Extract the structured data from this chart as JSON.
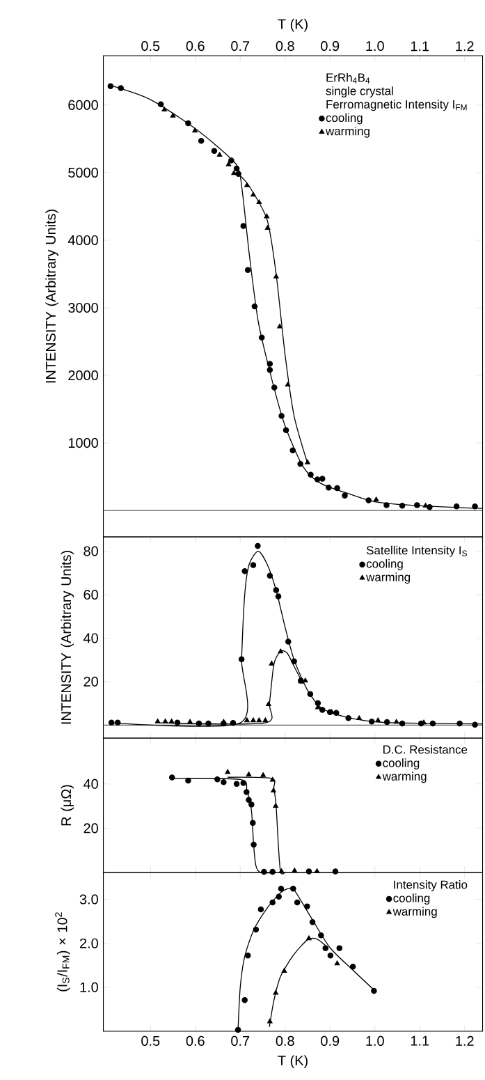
{
  "chart_data": [
    {
      "type": "scatter",
      "xlabel": "T (K)",
      "ylabel": "INTENSITY (Arbitrary Units)",
      "xlim": [
        0.395,
        1.24
      ],
      "xticks": [
        0.5,
        0.6,
        0.7,
        0.8,
        0.9,
        {
          "value": 1,
          "label": "1.0"
        },
        1.1,
        1.2
      ],
      "ylim": [
        -390,
        6730
      ],
      "yticks": [
        1000,
        2000,
        3000,
        4000,
        5000,
        6000
      ],
      "annotations": [
        "ErRh$_{4}$B$_{4}$",
        "single crystal"
      ],
      "legend_title": "Ferromagnetic Intensity I$_{FM}$",
      "legend": "top right",
      "ref_lines": [
        {
          "axis": "y",
          "value": 0
        }
      ],
      "series": [
        {
          "name": "cooling",
          "marker": "circle",
          "color": "#000000",
          "x": [
            0.411,
            0.434,
            0.523,
            0.584,
            0.613,
            0.642,
            0.68,
            0.692,
            0.696,
            0.707,
            0.717,
            0.732,
            0.748,
            0.766,
            0.766,
            0.776,
            0.792,
            0.802,
            0.817,
            0.834,
            0.857,
            0.872,
            0.883,
            0.897,
            0.916,
            0.933,
            0.986,
            1.026,
            1.061,
            1.094,
            1.122,
            1.182,
            1.223
          ],
          "values": [
            6280,
            6250,
            6010,
            5730,
            5470,
            5320,
            5180,
            5060,
            4980,
            4210,
            3560,
            3020,
            2560,
            2170,
            2080,
            1820,
            1400,
            1190,
            890,
            690,
            530,
            460,
            470,
            340,
            330,
            220,
            150,
            80,
            70,
            80,
            50,
            60,
            60
          ]
        },
        {
          "name": "warming",
          "marker": "triangle",
          "color": "#000000",
          "x": [
            0.531,
            0.55,
            0.599,
            0.654,
            0.674,
            0.686,
            0.715,
            0.729,
            0.742,
            0.759,
            0.761,
            0.78,
            0.788,
            0.806,
            0.85,
            1.003,
            1.113
          ],
          "values": [
            5930,
            5840,
            5620,
            5260,
            5120,
            4990,
            4810,
            4670,
            4560,
            4350,
            4180,
            3460,
            2720,
            1860,
            710,
            160,
            70
          ]
        },
        {
          "type": "line",
          "marker": "none",
          "color": "#000000",
          "x": [
            0.411,
            0.5,
            0.6,
            0.68,
            0.7,
            0.72,
            0.74,
            0.77,
            0.8,
            0.84,
            0.88,
            0.95,
            1.0,
            1.1,
            1.24
          ],
          "values": [
            6290,
            6080,
            5650,
            5200,
            4950,
            3800,
            2800,
            1950,
            1250,
            650,
            400,
            230,
            130,
            70,
            30
          ]
        },
        {
          "type": "line",
          "marker": "none",
          "color": "#000000",
          "x": [
            0.7,
            0.72,
            0.76,
            0.78,
            0.8,
            0.82,
            0.85
          ],
          "values": [
            4950,
            4800,
            4300,
            3500,
            2300,
            1400,
            700
          ]
        }
      ]
    },
    {
      "type": "scatter",
      "ylabel": "INTENSITY (Arbitrary Units)",
      "xlim": [
        0.395,
        1.24
      ],
      "xticks": [
        0.5,
        0.6,
        0.7,
        0.8,
        0.9,
        1.0,
        1.1,
        1.2
      ],
      "ylim": [
        -6,
        86.6
      ],
      "yticks": [
        20,
        40,
        60,
        80
      ],
      "tick_labels": "y",
      "legend_title": "Satellite Intensity I$_{S}$",
      "legend": "top right",
      "ref_lines": [
        {
          "axis": "y",
          "value": 0
        }
      ],
      "series": [
        {
          "name": "cooling",
          "marker": "circle",
          "color": "#000000",
          "x": [
            0.413,
            0.427,
            0.56,
            0.608,
            0.629,
            0.663,
            0.684,
            0.703,
            0.71,
            0.729,
            0.739,
            0.766,
            0.78,
            0.785,
            0.807,
            0.82,
            0.835,
            0.856,
            0.873,
            0.883,
            0.9,
            0.914,
            0.941,
            0.993,
            1.027,
            1.061,
            1.103,
            1.129,
            1.189,
            1.223
          ],
          "values": [
            1.1,
            1.1,
            1.1,
            0.7,
            0.7,
            0.7,
            1,
            30.3,
            70.8,
            73.6,
            82.4,
            68.7,
            62.1,
            59.2,
            38.4,
            29.3,
            20.4,
            14.3,
            10.1,
            7,
            5.9,
            5.6,
            3.2,
            1.6,
            1.4,
            0.7,
            0.7,
            0.7,
            0.7,
            0.2
          ]
        },
        {
          "name": "warming",
          "marker": "triangle",
          "color": "#000000",
          "x": [
            0.516,
            0.533,
            0.547,
            0.588,
            0.663,
            0.715,
            0.729,
            0.742,
            0.756,
            0.763,
            0.77,
            0.79,
            0.835,
            0.845,
            0.873,
            0.904,
            0.965,
            1.007,
            1.048,
            1.109
          ],
          "values": [
            1.6,
            1.6,
            1.6,
            1.4,
            1.4,
            2.1,
            2.1,
            2.1,
            2.1,
            9.5,
            28.2,
            33.8,
            20,
            20.4,
            8.1,
            5.9,
            3.1,
            2.1,
            1.4,
            1.1
          ]
        },
        {
          "type": "line",
          "marker": "none",
          "color": "#000000",
          "x": [
            0.413,
            0.7,
            0.703,
            0.71,
            0.72,
            0.74,
            0.76,
            0.78,
            0.8,
            0.82,
            0.85,
            0.88,
            0.92,
            0.98,
            1.05,
            1.24
          ],
          "values": [
            1,
            1,
            30,
            60,
            74,
            80,
            74,
            62,
            45,
            30,
            16,
            8,
            4.5,
            2,
            1,
            0.5
          ]
        },
        {
          "type": "line",
          "marker": "none",
          "color": "#000000",
          "x": [
            0.52,
            0.755,
            0.765,
            0.775,
            0.79,
            0.805,
            0.82,
            0.84
          ],
          "values": [
            1,
            1,
            10,
            28,
            34,
            33,
            27,
            19
          ]
        }
      ]
    },
    {
      "type": "scatter",
      "ylabel": "R (μΩ)",
      "xlim": [
        0.395,
        1.24
      ],
      "xticks": [
        0.5,
        0.6,
        0.7,
        0.8,
        0.9,
        1.0,
        1.1,
        1.2
      ],
      "ylim": [
        0,
        60.7
      ],
      "yticks": [
        20,
        40
      ],
      "tick_labels": "y",
      "legend_title": "D.C. Resistance",
      "legend": "top right",
      "series": [
        {
          "name": "cooling",
          "marker": "circle",
          "color": "#000000",
          "x": [
            0.548,
            0.584,
            0.649,
            0.663,
            0.692,
            0.707,
            0.714,
            0.719,
            0.725,
            0.728,
            0.73,
            0.753,
            0.772,
            0.853,
            0.912
          ],
          "values": [
            42.9,
            41.5,
            42.1,
            40.8,
            40,
            40.4,
            36.3,
            32.8,
            30.7,
            22.4,
            12.6,
            0.3,
            0.3,
            0.5,
            0.5
          ]
        },
        {
          "name": "warming",
          "marker": "triangle",
          "color": "#000000",
          "x": [
            0.672,
            0.719,
            0.751,
            0.772,
            0.774,
            0.779,
            0.792,
            0.821,
            0.871
          ],
          "values": [
            45.3,
            44.2,
            43.9,
            41.8,
            36.9,
            30,
            0.5,
            0.8,
            0.5
          ]
        },
        {
          "type": "line",
          "marker": "none",
          "color": "#000000",
          "x": [
            0.548,
            0.7,
            0.715,
            0.725,
            0.73,
            0.735,
            0.745,
            0.78
          ],
          "values": [
            42.5,
            42,
            37,
            28,
            12,
            3,
            0,
            0
          ]
        },
        {
          "type": "line",
          "marker": "none",
          "color": "#000000",
          "x": [
            0.672,
            0.77,
            0.775,
            0.78,
            0.785,
            0.79,
            0.8
          ],
          "values": [
            43,
            42.5,
            38,
            30,
            12,
            0,
            0
          ]
        }
      ]
    },
    {
      "type": "scatter",
      "xlabel": "T (K)",
      "ylabel": "(I$_{S}$/I$_{FM}$) × 10$^{2}$",
      "xlim": [
        0.395,
        1.24
      ],
      "xticks": [
        0.5,
        0.6,
        0.7,
        0.8,
        0.9,
        {
          "value": 1,
          "label": "1.0"
        },
        1.1,
        1.2
      ],
      "ylim": [
        0,
        3.61
      ],
      "yticks": [
        {
          "value": 1,
          "label": "1.0"
        },
        {
          "value": 2,
          "label": "2.0"
        },
        {
          "value": 3,
          "label": "3.0"
        }
      ],
      "legend_title": "Intensity Ratio",
      "legend": "top right",
      "series": [
        {
          "name": "cooling",
          "marker": "circle",
          "color": "#000000",
          "x": [
            0.695,
            0.71,
            0.717,
            0.735,
            0.746,
            0.772,
            0.786,
            0.791,
            0.818,
            0.827,
            0.849,
            0.861,
            0.88,
            0.89,
            0.901,
            0.921,
            0.951,
            0.998
          ],
          "values": [
            0.03,
            0.71,
            1.72,
            2.31,
            2.77,
            2.93,
            3.06,
            3.24,
            3.24,
            2.93,
            2.84,
            2.48,
            2.18,
            1.89,
            1.72,
            1.89,
            1.47,
            0.92
          ]
        },
        {
          "name": "warming",
          "marker": "triangle",
          "color": "#000000",
          "x": [
            0.766,
            0.779,
            0.798,
            0.853,
            0.916
          ],
          "values": [
            0.22,
            0.87,
            1.37,
            2.11,
            1.54
          ]
        },
        {
          "type": "line",
          "marker": "none",
          "color": "#000000",
          "x": [
            0.695,
            0.7,
            0.71,
            0.73,
            0.76,
            0.79,
            0.81,
            0.82,
            0.86,
            0.9,
            0.95,
            1.0
          ],
          "values": [
            0,
            1.0,
            1.7,
            2.3,
            2.8,
            3.15,
            3.25,
            3.22,
            2.55,
            1.9,
            1.4,
            0.92
          ]
        },
        {
          "type": "line",
          "marker": "none",
          "color": "#000000",
          "x": [
            0.765,
            0.775,
            0.79,
            0.82,
            0.85,
            0.87,
            0.89
          ],
          "values": [
            0.1,
            0.7,
            1.25,
            1.75,
            2.08,
            2.1,
            1.95
          ]
        }
      ]
    }
  ]
}
